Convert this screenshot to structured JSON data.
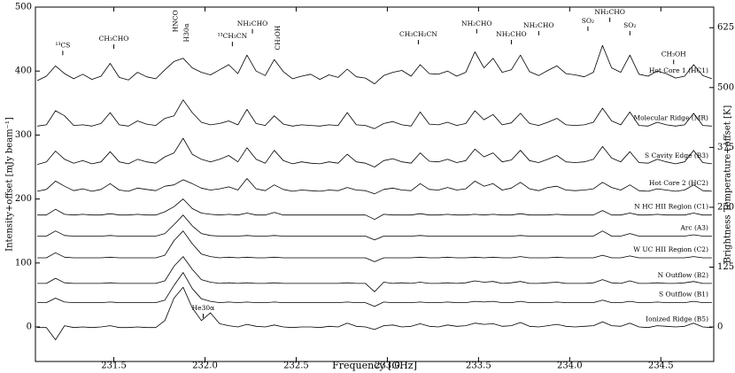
{
  "chart_data": {
    "type": "line",
    "xlabel": "Frequency [GHz]",
    "ylabel": "Intensity+offset [mJy beam⁻¹]",
    "y2label": "Brightness Temperature+offset [K]",
    "xlim": [
      231.07,
      234.79
    ],
    "ylim": [
      -54,
      500
    ],
    "y2lim": [
      -72,
      668
    ],
    "xticks": [
      231.5,
      {
        "value": 232,
        "label": "232.0"
      },
      232.5,
      {
        "value": 233,
        "label": "233.0"
      },
      233.5,
      {
        "value": 234,
        "label": "234.0"
      },
      234.5
    ],
    "yticks": [
      0,
      100,
      200,
      300,
      400,
      500
    ],
    "y2ticks": [
      0,
      125,
      250,
      375,
      500,
      625
    ],
    "x": [
      231.08,
      231.13,
      231.18,
      231.23,
      231.28,
      231.33,
      231.38,
      231.43,
      231.48,
      231.53,
      231.58,
      231.63,
      231.68,
      231.73,
      231.78,
      231.83,
      231.88,
      231.93,
      231.98,
      232.03,
      232.08,
      232.13,
      232.18,
      232.23,
      232.28,
      232.33,
      232.38,
      232.43,
      232.48,
      232.53,
      232.58,
      232.63,
      232.68,
      232.73,
      232.78,
      232.83,
      232.88,
      232.93,
      232.98,
      233.03,
      233.08,
      233.13,
      233.18,
      233.23,
      233.28,
      233.33,
      233.38,
      233.43,
      233.48,
      233.53,
      233.58,
      233.63,
      233.68,
      233.73,
      233.78,
      233.83,
      233.88,
      233.93,
      233.98,
      234.03,
      234.08,
      234.13,
      234.18,
      234.23,
      234.28,
      234.33,
      234.38,
      234.43,
      234.48,
      234.53,
      234.58,
      234.63,
      234.68,
      234.73,
      234.78
    ],
    "series": [
      {
        "name": "Hot Core 1 (HC1)",
        "color": "#000000",
        "values": [
          385,
          392,
          408,
          396,
          388,
          395,
          387,
          392,
          412,
          390,
          386,
          398,
          391,
          388,
          402,
          415,
          420,
          405,
          398,
          394,
          402,
          410,
          396,
          425,
          400,
          393,
          418,
          399,
          388,
          392,
          395,
          387,
          394,
          390,
          403,
          391,
          389,
          380,
          393,
          398,
          401,
          392,
          410,
          396,
          395,
          400,
          392,
          398,
          430,
          405,
          420,
          398,
          402,
          425,
          399,
          393,
          401,
          408,
          396,
          394,
          391,
          398,
          440,
          405,
          398,
          425,
          395,
          392,
          400,
          396,
          389,
          392,
          410,
          393,
          388
        ]
      },
      {
        "name": "Molecular Ridge (MR)",
        "color": "#000000",
        "values": [
          314,
          316,
          338,
          330,
          315,
          316,
          314,
          318,
          335,
          316,
          314,
          322,
          317,
          315,
          326,
          330,
          355,
          335,
          320,
          316,
          318,
          322,
          316,
          340,
          318,
          315,
          330,
          317,
          314,
          316,
          315,
          314,
          316,
          315,
          335,
          316,
          315,
          310,
          318,
          321,
          316,
          314,
          336,
          317,
          316,
          320,
          315,
          318,
          338,
          324,
          332,
          316,
          319,
          334,
          318,
          315,
          320,
          326,
          316,
          315,
          316,
          320,
          342,
          322,
          316,
          336,
          315,
          314,
          320,
          316,
          314,
          316,
          334,
          315,
          314
        ]
      },
      {
        "name": "S Cavity Edge (B3)",
        "color": "#000000",
        "values": [
          254,
          258,
          275,
          262,
          256,
          260,
          255,
          258,
          274,
          258,
          255,
          262,
          258,
          256,
          266,
          272,
          295,
          270,
          262,
          258,
          262,
          268,
          258,
          280,
          262,
          256,
          276,
          260,
          255,
          258,
          256,
          255,
          258,
          256,
          270,
          258,
          256,
          250,
          260,
          263,
          258,
          256,
          272,
          259,
          258,
          262,
          257,
          260,
          278,
          266,
          272,
          258,
          261,
          276,
          260,
          257,
          262,
          268,
          258,
          257,
          258,
          262,
          282,
          264,
          258,
          274,
          257,
          256,
          262,
          258,
          255,
          258,
          276,
          257,
          255
        ]
      },
      {
        "name": "Hot Core 2 (HC2)",
        "color": "#000000",
        "values": [
          212,
          215,
          228,
          220,
          213,
          216,
          212,
          215,
          224,
          214,
          212,
          217,
          215,
          213,
          220,
          222,
          230,
          224,
          217,
          214,
          216,
          219,
          214,
          232,
          216,
          213,
          222,
          215,
          212,
          214,
          213,
          212,
          214,
          213,
          218,
          214,
          213,
          208,
          215,
          217,
          214,
          213,
          224,
          215,
          214,
          218,
          214,
          216,
          228,
          220,
          224,
          214,
          217,
          226,
          216,
          213,
          218,
          220,
          214,
          213,
          214,
          216,
          226,
          218,
          214,
          222,
          213,
          212,
          216,
          214,
          212,
          214,
          222,
          213,
          212
        ]
      },
      {
        "name": "N HC HII Region (C1)",
        "color": "#000000",
        "values": [
          175,
          175,
          184,
          176,
          175,
          176,
          175,
          175,
          177,
          175,
          175,
          176,
          175,
          175,
          180,
          188,
          200,
          185,
          178,
          176,
          175,
          176,
          175,
          178,
          175,
          175,
          179,
          175,
          175,
          175,
          175,
          175,
          175,
          175,
          175,
          175,
          175,
          168,
          176,
          175,
          175,
          175,
          177,
          175,
          175,
          176,
          175,
          175,
          176,
          175,
          176,
          175,
          175,
          177,
          175,
          175,
          175,
          176,
          175,
          175,
          175,
          175,
          182,
          175,
          175,
          178,
          175,
          175,
          176,
          175,
          175,
          175,
          178,
          175,
          175
        ]
      },
      {
        "name": "Arc (A3)",
        "color": "#000000",
        "values": [
          142,
          142,
          150,
          143,
          142,
          142,
          142,
          142,
          143,
          142,
          142,
          142,
          142,
          142,
          146,
          160,
          175,
          158,
          146,
          143,
          142,
          142,
          142,
          143,
          142,
          142,
          143,
          142,
          142,
          142,
          142,
          142,
          142,
          142,
          142,
          142,
          142,
          136,
          142,
          142,
          142,
          142,
          143,
          142,
          142,
          142,
          142,
          142,
          142,
          142,
          142,
          142,
          142,
          143,
          142,
          142,
          142,
          142,
          142,
          142,
          142,
          142,
          150,
          142,
          142,
          146,
          142,
          142,
          142,
          142,
          142,
          142,
          144,
          142,
          142
        ]
      },
      {
        "name": "W UC HII Region (C2)",
        "color": "#000000",
        "values": [
          108,
          108,
          116,
          109,
          108,
          108,
          108,
          108,
          109,
          108,
          108,
          108,
          108,
          108,
          112,
          135,
          150,
          130,
          114,
          110,
          108,
          109,
          108,
          109,
          108,
          108,
          109,
          108,
          108,
          108,
          108,
          108,
          108,
          108,
          108,
          108,
          108,
          102,
          108,
          108,
          108,
          108,
          109,
          108,
          108,
          109,
          108,
          108,
          109,
          108,
          109,
          108,
          108,
          110,
          108,
          108,
          108,
          109,
          108,
          108,
          108,
          108,
          112,
          108,
          108,
          111,
          108,
          108,
          108,
          108,
          108,
          108,
          110,
          108,
          108
        ]
      },
      {
        "name": "N Outflow (B2)",
        "color": "#000000",
        "values": [
          68,
          68,
          76,
          69,
          68,
          68,
          68,
          68,
          69,
          68,
          68,
          68,
          68,
          68,
          72,
          95,
          110,
          90,
          74,
          70,
          68,
          69,
          68,
          69,
          68,
          68,
          69,
          68,
          68,
          68,
          68,
          68,
          68,
          68,
          69,
          68,
          68,
          55,
          70,
          68,
          69,
          68,
          70,
          68,
          68,
          69,
          68,
          69,
          72,
          70,
          71,
          68,
          69,
          71,
          68,
          68,
          69,
          70,
          68,
          68,
          68,
          69,
          74,
          69,
          68,
          72,
          68,
          68,
          69,
          68,
          68,
          69,
          71,
          68,
          68
        ]
      },
      {
        "name": "S Outflow (B1)",
        "color": "#000000",
        "values": [
          38,
          38,
          45,
          39,
          38,
          38,
          38,
          38,
          39,
          38,
          38,
          38,
          38,
          38,
          42,
          65,
          85,
          60,
          44,
          40,
          38,
          39,
          38,
          39,
          38,
          38,
          39,
          38,
          38,
          38,
          38,
          38,
          38,
          38,
          39,
          38,
          38,
          32,
          39,
          38,
          38,
          38,
          39,
          38,
          38,
          39,
          38,
          38,
          40,
          39,
          40,
          38,
          38,
          40,
          38,
          38,
          38,
          39,
          38,
          38,
          38,
          38,
          42,
          38,
          38,
          40,
          38,
          38,
          39,
          38,
          38,
          38,
          40,
          38,
          38
        ]
      },
      {
        "name": "Ionized Ridge (B5)",
        "color": "#000000",
        "values": [
          -1,
          -1,
          -20,
          2,
          -1,
          0,
          -1,
          0,
          2,
          -1,
          -1,
          0,
          -1,
          -1,
          10,
          45,
          62,
          30,
          10,
          22,
          5,
          2,
          0,
          4,
          1,
          0,
          3,
          0,
          -1,
          0,
          0,
          -1,
          1,
          0,
          6,
          1,
          0,
          -4,
          2,
          3,
          0,
          1,
          5,
          1,
          0,
          3,
          1,
          2,
          6,
          4,
          5,
          1,
          2,
          7,
          1,
          0,
          2,
          4,
          1,
          0,
          1,
          2,
          8,
          2,
          1,
          6,
          0,
          -1,
          2,
          1,
          0,
          1,
          6,
          0,
          -1
        ]
      }
    ],
    "annotations": [
      {
        "text": "¹³CS",
        "x": 231.22,
        "y": 440
      },
      {
        "text": "CH₃CHO",
        "x": 231.5,
        "y": 450
      },
      {
        "text": "HNCO",
        "x": 231.84,
        "y": 478,
        "orientation": "vertical"
      },
      {
        "text": "H30α",
        "x": 231.9,
        "y": 460,
        "orientation": "vertical"
      },
      {
        "text": "¹³CH₃CN",
        "x": 232.15,
        "y": 454
      },
      {
        "text": "NH₂CHO",
        "x": 232.26,
        "y": 474
      },
      {
        "text": "CH₃OH",
        "x": 232.4,
        "y": 452,
        "orientation": "vertical"
      },
      {
        "text": "CH₃CH₂CN",
        "x": 233.17,
        "y": 457
      },
      {
        "text": "NH₂CHO",
        "x": 233.49,
        "y": 474
      },
      {
        "text": "NH₂CHO",
        "x": 233.68,
        "y": 457
      },
      {
        "text": "NH₂CHO",
        "x": 233.83,
        "y": 471
      },
      {
        "text": "SO₂",
        "x": 234.1,
        "y": 478
      },
      {
        "text": "NH₂CHO",
        "x": 234.22,
        "y": 492
      },
      {
        "text": "SO₂",
        "x": 234.33,
        "y": 471
      },
      {
        "text": "CH₃OH",
        "x": 234.57,
        "y": 426
      },
      {
        "text": "He30α",
        "x": 231.99,
        "y": 29
      }
    ]
  }
}
